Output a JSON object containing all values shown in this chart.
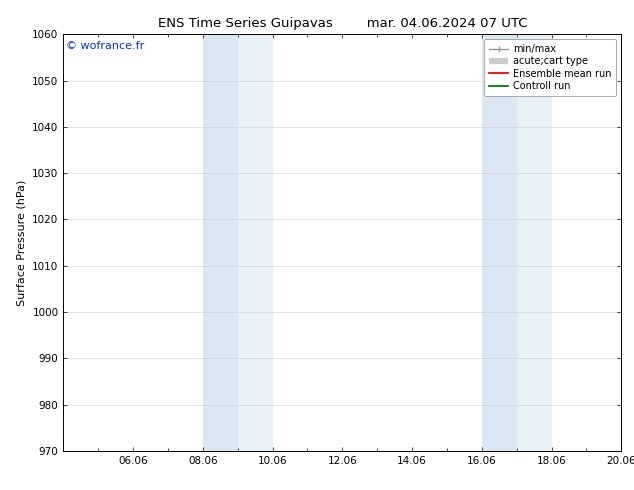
{
  "title_left": "ENS Time Series Guipavas",
  "title_right": "mar. 04.06.2024 07 UTC",
  "ylabel": "Surface Pressure (hPa)",
  "ylim": [
    970,
    1060
  ],
  "yticks": [
    970,
    980,
    990,
    1000,
    1010,
    1020,
    1030,
    1040,
    1050,
    1060
  ],
  "xtick_labels": [
    "06.06",
    "08.06",
    "10.06",
    "12.06",
    "14.06",
    "16.06",
    "18.06",
    "20.06"
  ],
  "xtick_positions": [
    2,
    4,
    6,
    8,
    10,
    12,
    14,
    16
  ],
  "xlim": [
    0,
    16
  ],
  "shaded_bands": [
    {
      "xmin": 4,
      "xmax": 5
    },
    {
      "xmin": 5,
      "xmax": 6
    },
    {
      "xmin": 12,
      "xmax": 13
    },
    {
      "xmin": 13,
      "xmax": 14
    }
  ],
  "band_colors": [
    "#dae8f4",
    "#e6f1f8",
    "#dae8f4",
    "#e6f1f8"
  ],
  "watermark": "© wofrance.fr",
  "watermark_color": "#0033cc",
  "background_color": "#ffffff",
  "legend_items": [
    {
      "label": "min/max",
      "color": "#999999",
      "lw": 1.2
    },
    {
      "label": "acute;cart type",
      "color": "#bbbbbb",
      "lw": 4
    },
    {
      "label": "Ensemble mean run",
      "color": "#ff0000",
      "lw": 1.5
    },
    {
      "label": "Controll run",
      "color": "#008000",
      "lw": 1.5
    }
  ],
  "title_fontsize": 9.5,
  "ylabel_fontsize": 8,
  "tick_fontsize": 7.5,
  "watermark_fontsize": 8,
  "legend_fontsize": 7
}
